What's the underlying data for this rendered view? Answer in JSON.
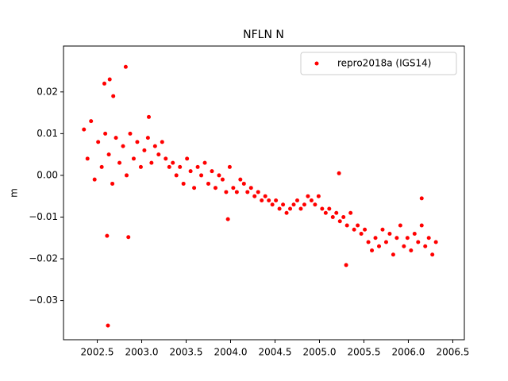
{
  "chart_data": {
    "type": "scatter",
    "title": "NFLN N",
    "y_label": "m",
    "x": [
      2002.35,
      2002.39,
      2002.43,
      2002.47,
      2002.51,
      2002.55,
      2002.59,
      2002.63,
      2002.67,
      2002.71,
      2002.75,
      2002.79,
      2002.83,
      2002.87,
      2002.91,
      2002.95,
      2002.99,
      2003.03,
      2003.07,
      2003.11,
      2003.15,
      2003.19,
      2003.23,
      2003.27,
      2003.31,
      2003.35,
      2003.39,
      2003.43,
      2003.47,
      2003.51,
      2003.55,
      2003.59,
      2003.63,
      2003.67,
      2003.71,
      2003.75,
      2003.79,
      2003.83,
      2003.87,
      2003.91,
      2003.95,
      2003.99,
      2004.03,
      2004.07,
      2004.11,
      2004.15,
      2004.19,
      2004.23,
      2004.27,
      2004.31,
      2004.35,
      2004.39,
      2004.43,
      2004.47,
      2004.51,
      2004.55,
      2004.59,
      2004.63,
      2004.67,
      2004.71,
      2004.75,
      2004.79,
      2004.83,
      2004.87,
      2004.91,
      2004.95,
      2004.99,
      2005.03,
      2005.07,
      2005.11,
      2005.15,
      2005.19,
      2005.23,
      2005.27,
      2005.31,
      2005.35,
      2005.39,
      2005.43,
      2005.47,
      2005.51,
      2005.55,
      2005.59,
      2005.63,
      2005.67,
      2005.71,
      2005.75,
      2005.79,
      2005.83,
      2005.87,
      2005.91,
      2005.95,
      2005.99,
      2006.03,
      2006.07,
      2006.11,
      2006.15,
      2006.19,
      2006.23,
      2006.27,
      2006.31,
      2002.82,
      2002.62,
      2002.64,
      2002.58,
      2002.68,
      2002.61,
      2002.85,
      2003.08,
      2005.22,
      2005.3,
      2006.15,
      2003.97
    ],
    "series": [
      {
        "name": "repro2018a (IGS14)",
        "color": "#ff0000",
        "values": [
          0.011,
          0.004,
          0.013,
          -0.001,
          0.008,
          0.002,
          0.01,
          0.005,
          -0.002,
          0.009,
          0.003,
          0.007,
          0.0,
          0.01,
          0.004,
          0.008,
          0.002,
          0.006,
          0.009,
          0.003,
          0.007,
          0.005,
          0.008,
          0.004,
          0.002,
          0.003,
          0.0,
          0.002,
          -0.002,
          0.004,
          0.001,
          -0.003,
          0.002,
          0.0,
          0.003,
          -0.002,
          0.001,
          -0.003,
          0.0,
          -0.001,
          -0.004,
          0.002,
          -0.003,
          -0.004,
          -0.001,
          -0.002,
          -0.004,
          -0.003,
          -0.005,
          -0.004,
          -0.006,
          -0.005,
          -0.006,
          -0.007,
          -0.006,
          -0.008,
          -0.007,
          -0.009,
          -0.008,
          -0.007,
          -0.006,
          -0.008,
          -0.007,
          -0.005,
          -0.006,
          -0.007,
          -0.005,
          -0.008,
          -0.009,
          -0.008,
          -0.01,
          -0.009,
          -0.011,
          -0.01,
          -0.012,
          -0.009,
          -0.013,
          -0.012,
          -0.014,
          -0.013,
          -0.016,
          -0.018,
          -0.015,
          -0.017,
          -0.013,
          -0.016,
          -0.014,
          -0.019,
          -0.015,
          -0.012,
          -0.017,
          -0.015,
          -0.018,
          -0.014,
          -0.016,
          -0.012,
          -0.017,
          -0.015,
          -0.019,
          -0.016,
          0.026,
          -0.036,
          0.023,
          0.022,
          0.019,
          -0.0145,
          -0.0148,
          0.014,
          0.0005,
          -0.0215,
          -0.0055,
          -0.0105
        ]
      }
    ],
    "xlim": [
      2002.12,
      2006.63
    ],
    "ylim": [
      -0.0394,
      0.031
    ],
    "xticks": [
      2002.5,
      {
        "value": 2003,
        "label": "2003.0"
      },
      2003.5,
      {
        "value": 2004,
        "label": "2004.0"
      },
      2004.5,
      {
        "value": 2005,
        "label": "2005.0"
      },
      2005.5,
      {
        "value": 2006,
        "label": "2006.0"
      },
      2006.5
    ],
    "yticks": [
      {
        "value": -0.03,
        "label": "−0.03"
      },
      {
        "value": -0.02,
        "label": "−0.02"
      },
      {
        "value": -0.01,
        "label": "−0.01"
      },
      {
        "value": 0,
        "label": "0.00"
      },
      0.01,
      0.02
    ],
    "legend": "upper right"
  }
}
